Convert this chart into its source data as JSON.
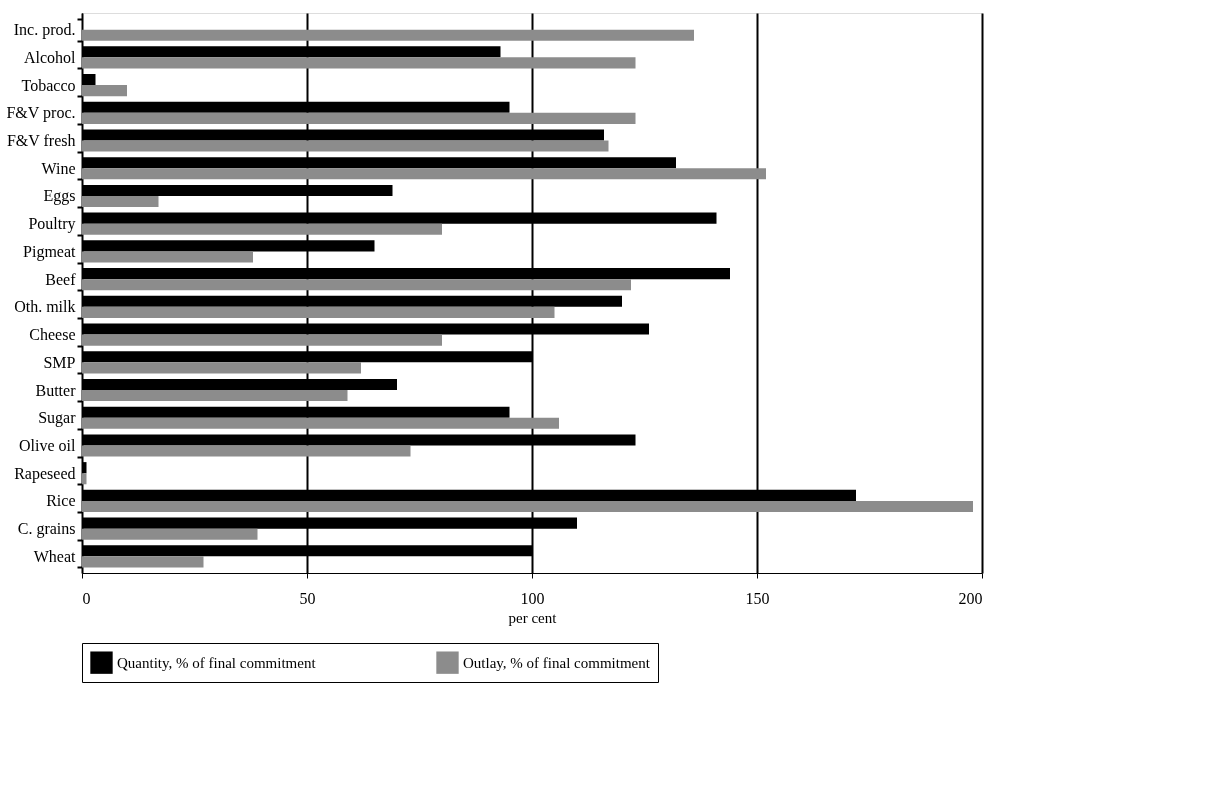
{
  "chart_data": {
    "type": "bar",
    "orientation": "horizontal",
    "xlabel": "per cent",
    "categories": [
      "Inc. prod.",
      "Alcohol",
      "Tobacco",
      "F&V proc.",
      "F&V fresh",
      "Wine",
      "Eggs",
      "Poultry",
      "Pigmeat",
      "Beef",
      "Oth. milk",
      "Cheese",
      "SMP",
      "Butter",
      "Sugar",
      "Olive oil",
      "Rapeseed",
      "Rice",
      "C. grains",
      "Wheat"
    ],
    "series": [
      {
        "name": "Quantity, % of final commitment",
        "color": "#000000",
        "values": [
          null,
          93,
          3,
          95,
          116,
          132,
          69,
          141,
          65,
          144,
          120,
          126,
          100,
          70,
          95,
          123,
          1,
          172,
          110,
          100
        ]
      },
      {
        "name": "Outlay, % of final commitment",
        "color": "#8c8c8c",
        "values": [
          136,
          123,
          10,
          123,
          117,
          152,
          17,
          80,
          38,
          122,
          105,
          80,
          62,
          59,
          106,
          73,
          1,
          198,
          39,
          27
        ]
      }
    ],
    "xlim": [
      0,
      200
    ],
    "xticks": [
      0,
      50,
      100,
      150,
      200
    ],
    "grid": "x",
    "legend": "bottom"
  }
}
